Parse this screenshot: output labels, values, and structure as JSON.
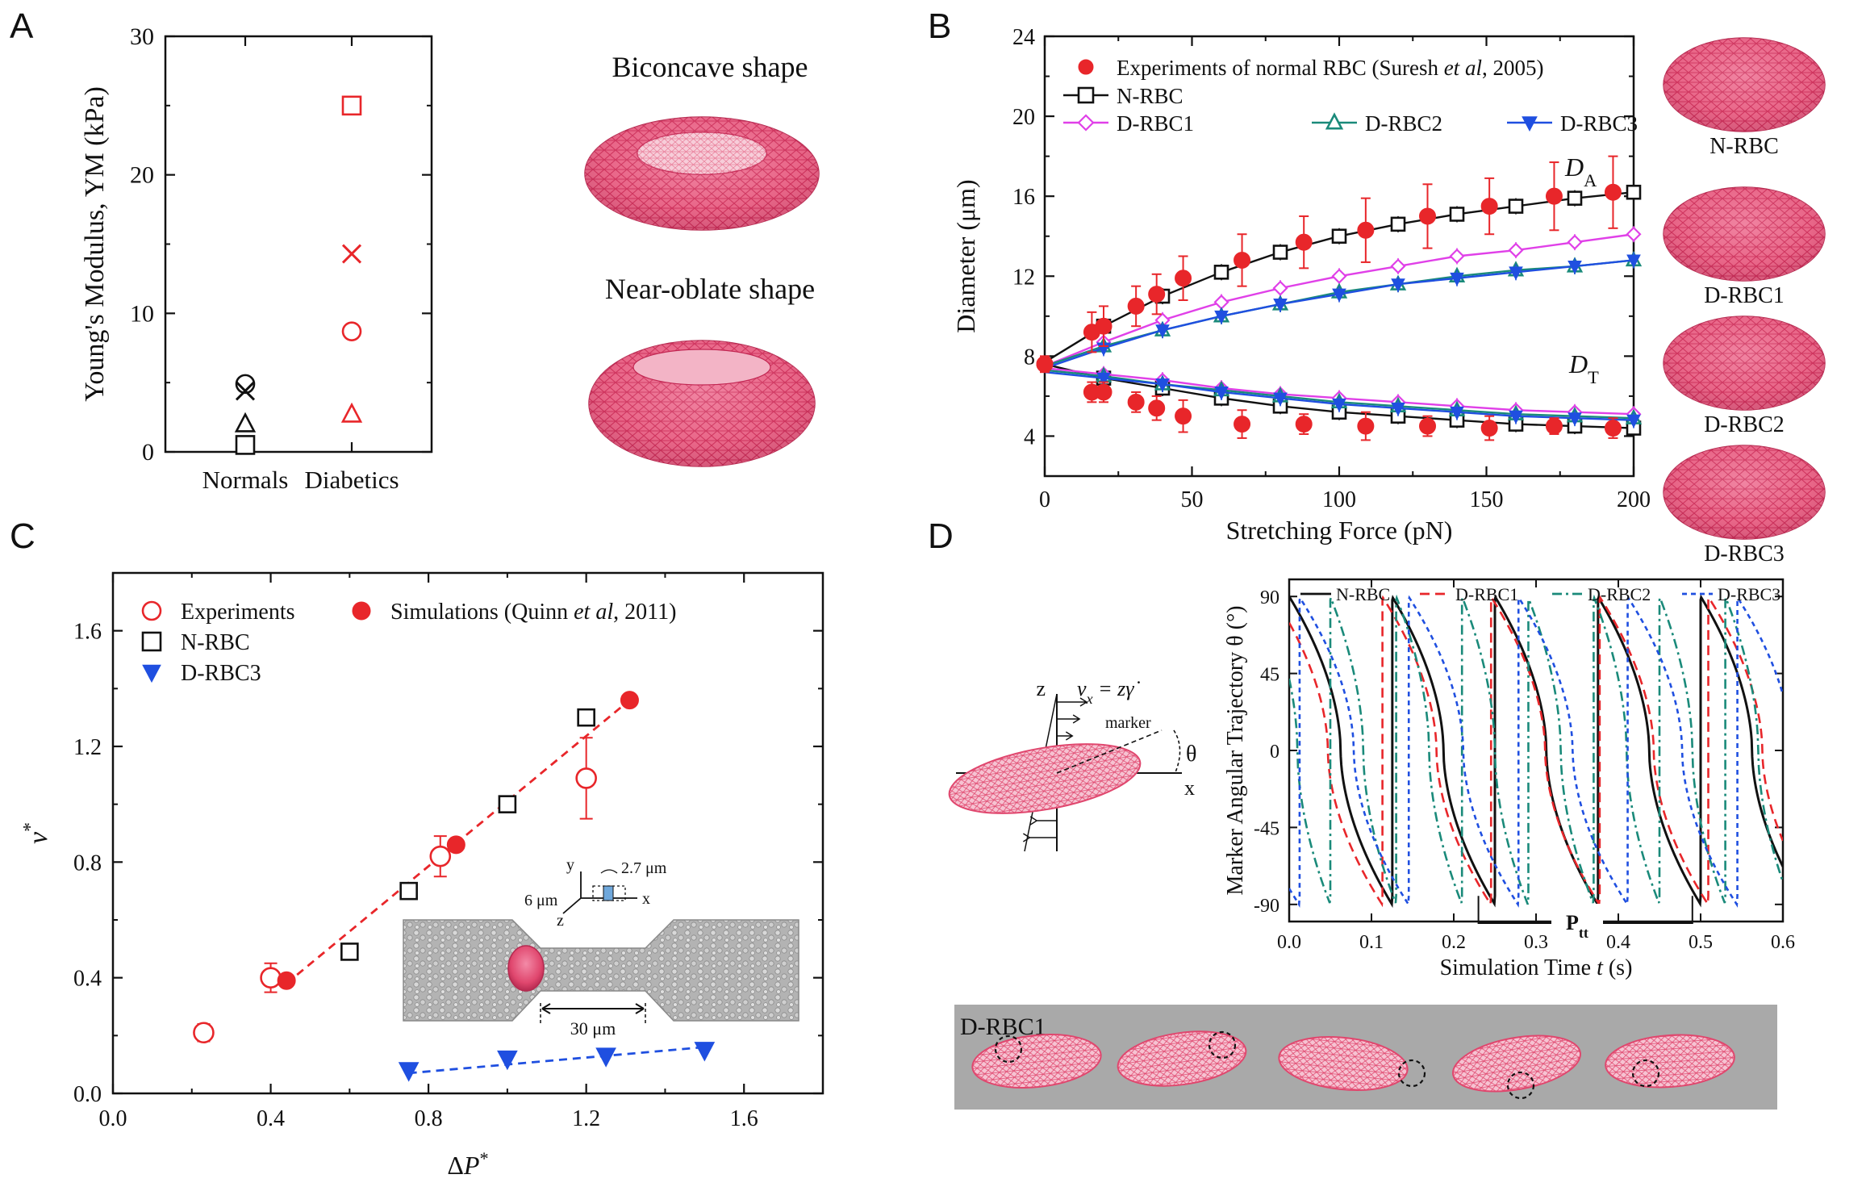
{
  "panels": {
    "a": "A",
    "b": "B",
    "c": "C",
    "d": "D"
  },
  "colors": {
    "red": "#e8262a",
    "black": "#111111",
    "magenta": "#e040e8",
    "teal": "#1a8a7a",
    "blue": "#1f4fe0",
    "rbc": "#e0476e",
    "gray": "#a9a9a9"
  },
  "chart_data": [
    {
      "id": "A",
      "type": "scatter",
      "ylabel": "Young's Modulus, YM (kPa)",
      "xlabel": "",
      "categories": [
        "Normals",
        "Diabetics"
      ],
      "ylim": [
        0,
        30
      ],
      "yticks": [
        0,
        10,
        20,
        30
      ],
      "series": [
        {
          "name": "",
          "points": [
            {
              "cat": 0,
              "y": 4.9,
              "marker": "circle",
              "color": "black"
            },
            {
              "cat": 0,
              "y": 4.4,
              "marker": "x",
              "color": "black"
            },
            {
              "cat": 0,
              "y": 2.0,
              "marker": "triangle",
              "color": "black"
            },
            {
              "cat": 0,
              "y": 0.5,
              "marker": "square",
              "color": "black"
            },
            {
              "cat": 1,
              "y": 25.0,
              "marker": "square",
              "color": "red"
            },
            {
              "cat": 1,
              "y": 14.3,
              "marker": "x",
              "color": "red"
            },
            {
              "cat": 1,
              "y": 8.7,
              "marker": "circle",
              "color": "red"
            },
            {
              "cat": 1,
              "y": 2.7,
              "marker": "triangle",
              "color": "red"
            }
          ]
        }
      ],
      "shape_labels": [
        "Biconcave shape",
        "Near-oblate shape"
      ]
    },
    {
      "id": "B",
      "type": "line",
      "xlabel": "Stretching Force (pN)",
      "ylabel": "Diameter (μm)",
      "xlim": [
        0,
        200
      ],
      "ylim": [
        2,
        24
      ],
      "xticks": [
        0,
        50,
        100,
        150,
        200
      ],
      "yticks": [
        4,
        8,
        12,
        16,
        20,
        24
      ],
      "curve_labels": [
        {
          "text": "D",
          "sub": "A"
        },
        {
          "text": "D",
          "sub": "T"
        }
      ],
      "legend": [
        {
          "label_pre": "Experiments of normal RBC (Suresh ",
          "label_it": "et al",
          "label_post": ", 2005)",
          "marker": "filled-circle",
          "color": "red"
        },
        {
          "label": "N-RBC",
          "marker": "square",
          "color": "black"
        },
        {
          "label": "D-RBC1",
          "marker": "diamond",
          "color": "magenta"
        },
        {
          "label": "D-RBC2",
          "marker": "triangle",
          "color": "teal"
        },
        {
          "label": "D-RBC3",
          "marker": "filled-triangle-down",
          "color": "blue"
        }
      ],
      "experiments": {
        "x": [
          0,
          16,
          20,
          31,
          38,
          47,
          67,
          88,
          109,
          130,
          151,
          173,
          193
        ],
        "DA": [
          7.6,
          9.2,
          9.5,
          10.5,
          11.1,
          11.9,
          12.8,
          13.7,
          14.3,
          15.0,
          15.5,
          16.0,
          16.2
        ],
        "DA_err": [
          0.4,
          1.0,
          1.0,
          1.0,
          1.0,
          1.1,
          1.3,
          1.3,
          1.6,
          1.6,
          1.4,
          1.7,
          1.8
        ],
        "DT": [
          7.6,
          6.2,
          6.2,
          5.7,
          5.4,
          5.0,
          4.6,
          4.6,
          4.5,
          4.5,
          4.4,
          4.5,
          4.4
        ],
        "DT_err": [
          0.3,
          0.5,
          0.5,
          0.5,
          0.6,
          0.8,
          0.7,
          0.5,
          0.7,
          0.5,
          0.6,
          0.4,
          0.5
        ]
      },
      "sim_x": [
        0,
        20,
        40,
        60,
        80,
        100,
        120,
        140,
        160,
        180,
        200
      ],
      "series": [
        {
          "name": "N-RBC",
          "color": "black",
          "marker": "square",
          "DA": [
            7.7,
            9.5,
            11.0,
            12.2,
            13.2,
            14.0,
            14.6,
            15.1,
            15.5,
            15.9,
            16.2
          ],
          "DT": [
            7.6,
            6.9,
            6.4,
            5.9,
            5.5,
            5.2,
            5.0,
            4.8,
            4.6,
            4.5,
            4.4
          ]
        },
        {
          "name": "D-RBC1",
          "color": "magenta",
          "marker": "diamond",
          "DA": [
            7.5,
            8.7,
            9.8,
            10.7,
            11.4,
            12.0,
            12.5,
            13.0,
            13.3,
            13.7,
            14.1
          ],
          "DT": [
            7.4,
            7.1,
            6.8,
            6.4,
            6.1,
            5.9,
            5.7,
            5.5,
            5.3,
            5.2,
            5.1
          ]
        },
        {
          "name": "D-RBC2",
          "color": "teal",
          "marker": "triangle",
          "DA": [
            7.5,
            8.5,
            9.3,
            10.0,
            10.6,
            11.2,
            11.6,
            12.0,
            12.3,
            12.5,
            12.8
          ],
          "DT": [
            7.3,
            7.0,
            6.6,
            6.3,
            6.0,
            5.7,
            5.5,
            5.3,
            5.1,
            5.0,
            4.9
          ]
        },
        {
          "name": "D-RBC3",
          "color": "blue",
          "marker": "filled-triangle-down",
          "DA": [
            7.4,
            8.4,
            9.3,
            10.0,
            10.6,
            11.1,
            11.6,
            11.9,
            12.2,
            12.5,
            12.8
          ],
          "DT": [
            7.2,
            6.9,
            6.6,
            6.2,
            5.9,
            5.6,
            5.4,
            5.2,
            5.0,
            4.9,
            4.8
          ]
        }
      ],
      "shape_labels": [
        "N-RBC",
        "D-RBC1",
        "D-RBC2",
        "D-RBC3"
      ]
    },
    {
      "id": "C",
      "type": "scatter",
      "xlabel": "ΔP*",
      "ylabel": "v*",
      "xlim": [
        0,
        1.8
      ],
      "ylim": [
        0,
        1.8
      ],
      "xticks": [
        0.0,
        0.4,
        0.8,
        1.2,
        1.6
      ],
      "yticks": [
        0.0,
        0.4,
        0.8,
        1.2,
        1.6
      ],
      "legend": [
        {
          "label": "Experiments",
          "marker": "circle",
          "color": "red"
        },
        {
          "label_pre": "Simulations (Quinn ",
          "label_it": "et al",
          "label_post": ", 2011)",
          "marker": "filled-circle",
          "color": "red"
        },
        {
          "label": "N-RBC",
          "marker": "square",
          "color": "black"
        },
        {
          "label": "D-RBC3",
          "marker": "filled-triangle-down",
          "color": "blue"
        }
      ],
      "experiments": {
        "x": [
          0.23,
          0.4,
          0.83,
          1.2
        ],
        "y": [
          0.21,
          0.4,
          0.82,
          1.09
        ],
        "err": [
          0.03,
          0.05,
          0.07,
          0.14
        ]
      },
      "simulations_quinn": {
        "x": [
          0.44,
          0.87,
          1.31
        ],
        "y": [
          0.39,
          0.86,
          1.36
        ]
      },
      "N_RBC": {
        "x": [
          0.6,
          0.75,
          1.0,
          1.2
        ],
        "y": [
          0.49,
          0.7,
          1.0,
          1.3
        ]
      },
      "D_RBC3": {
        "x": [
          0.75,
          1.0,
          1.25,
          1.5
        ],
        "y": [
          0.08,
          0.12,
          0.13,
          0.15
        ]
      },
      "fit_red": {
        "x": [
          0.44,
          1.31
        ],
        "y": [
          0.38,
          1.36
        ]
      },
      "fit_blue": {
        "x": [
          0.75,
          1.5
        ],
        "y": [
          0.07,
          0.16
        ]
      },
      "inset_labels": {
        "y": "y",
        "x": "x",
        "z": "z",
        "w": "6 μm",
        "h": "2.7 μm",
        "len": "30 μm"
      }
    },
    {
      "id": "D",
      "type": "line",
      "xlabel": "Simulation Time t (s)",
      "xlabel_pre": "Simulation Time ",
      "xlabel_it": "t",
      "xlabel_post": " (s)",
      "ylabel": "Marker Angular Trajectory θ (°)",
      "xlim": [
        0.0,
        0.6
      ],
      "ylim": [
        -100,
        100
      ],
      "xticks": [
        0.0,
        0.1,
        0.2,
        0.3,
        0.4,
        0.5,
        0.6
      ],
      "yticks": [
        90,
        45,
        0,
        -45,
        -90
      ],
      "legend": [
        {
          "label": "N-RBC",
          "style": "solid",
          "color": "black"
        },
        {
          "label": "D-RBC1",
          "style": "dash",
          "color": "red"
        },
        {
          "label": "D-RBC2",
          "style": "dashdot",
          "color": "teal"
        },
        {
          "label": "D-RBC3",
          "style": "dot",
          "color": "blue"
        }
      ],
      "series": [
        {
          "name": "N-RBC",
          "period": 0.125,
          "phase": 0.0,
          "color": "black",
          "style": "solid"
        },
        {
          "name": "D-RBC1",
          "period": 0.132,
          "phase": -0.019,
          "color": "red",
          "style": "dash"
        },
        {
          "name": "D-RBC2",
          "period": 0.08,
          "phase": -0.03,
          "color": "teal",
          "style": "dashdot"
        },
        {
          "name": "D-RBC3",
          "period": 0.133,
          "phase": 0.012,
          "color": "blue",
          "style": "dot"
        }
      ],
      "period_label": "P",
      "period_sub": "tt",
      "sketch_labels": {
        "z": "z",
        "x": "x",
        "theta": "θ",
        "marker": "marker",
        "vx_pre": "v",
        "vx_sub": "x",
        "vx_post": " = zγ̇"
      },
      "strip_label": "D-RBC1"
    }
  ]
}
